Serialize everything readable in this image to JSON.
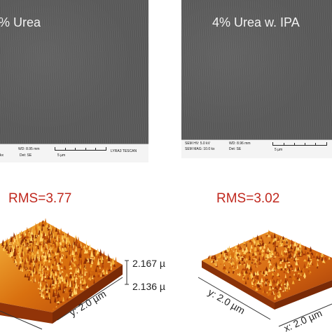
{
  "sem_left": {
    "label": "% Urea",
    "wd": "WD: 8.95 mm",
    "brand": "LYRA3 TESCAN",
    "kx": "kx",
    "det": "Det: SE",
    "scale": "5 µm"
  },
  "sem_right": {
    "label": "4% Urea w. IPA",
    "hv": "SEM HV: 5.0 kV",
    "wd": "WD: 8.96 mm",
    "mag": "SEM MAG: 10.0 kx",
    "det": "Det: SE",
    "scale": "5 µm"
  },
  "afm_left": {
    "rms": "RMS=3.77",
    "z_top": "2.167 µ",
    "z_bottom": "2.136 µ",
    "y_axis": "y: 2.0 µm"
  },
  "afm_right": {
    "rms": "RMS=3.02",
    "y_axis": "y: 2.0 µm",
    "x_axis": "x: 2.0 µm"
  },
  "colors": {
    "rms_text": "#c0281e",
    "afm_dark": "#8a2e06",
    "afm_mid": "#d9700f",
    "afm_light": "#f5b43c"
  }
}
